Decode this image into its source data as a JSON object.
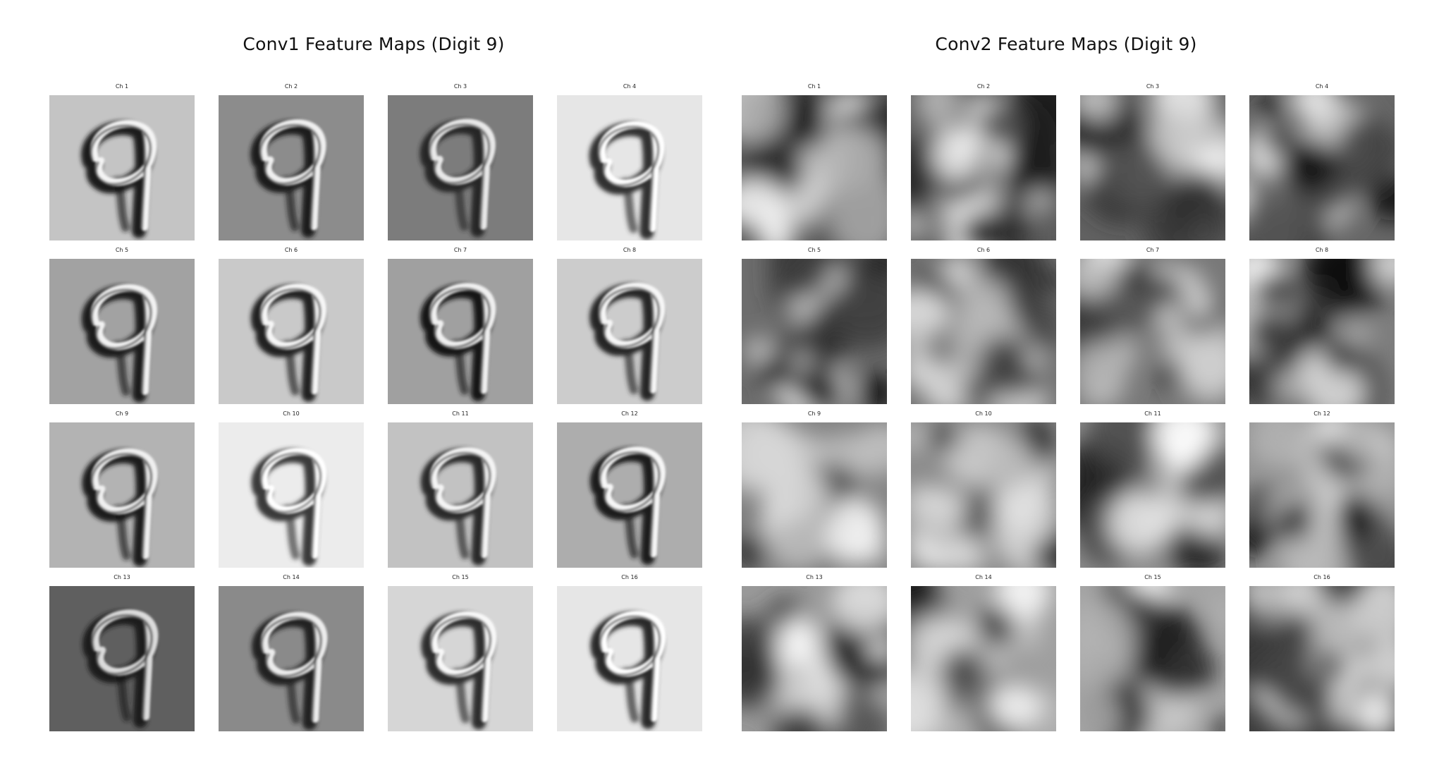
{
  "panels": [
    {
      "id": "conv1",
      "title": "Conv1 Feature Maps (Digit 9)",
      "channels": [
        {
          "label": "Ch 1",
          "bg": "#c4c4c4",
          "stroke_dark": "#1a1a1a",
          "stroke_light": "#f4f4f4"
        },
        {
          "label": "Ch 2",
          "bg": "#8c8c8c",
          "stroke_dark": "#1e1e1e",
          "stroke_light": "#f0f0f0"
        },
        {
          "label": "Ch 3",
          "bg": "#7c7c7c",
          "stroke_dark": "#262626",
          "stroke_light": "#e8e8e8"
        },
        {
          "label": "Ch 4",
          "bg": "#e6e6e6",
          "stroke_dark": "#333333",
          "stroke_light": "#ffffff"
        },
        {
          "label": "Ch 5",
          "bg": "#a2a2a2",
          "stroke_dark": "#1c1c1c",
          "stroke_light": "#f2f2f2"
        },
        {
          "label": "Ch 6",
          "bg": "#c9c9c9",
          "stroke_dark": "#222222",
          "stroke_light": "#f6f6f6"
        },
        {
          "label": "Ch 7",
          "bg": "#a0a0a0",
          "stroke_dark": "#181818",
          "stroke_light": "#f0f0f0"
        },
        {
          "label": "Ch 8",
          "bg": "#cccccc",
          "stroke_dark": "#262626",
          "stroke_light": "#f6f6f6"
        },
        {
          "label": "Ch 9",
          "bg": "#b3b3b3",
          "stroke_dark": "#1a1a1a",
          "stroke_light": "#f0f0f0"
        },
        {
          "label": "Ch 10",
          "bg": "#ececec",
          "stroke_dark": "#3a3a3a",
          "stroke_light": "#ffffff"
        },
        {
          "label": "Ch 11",
          "bg": "#c2c2c2",
          "stroke_dark": "#2a2a2a",
          "stroke_light": "#f4f4f4"
        },
        {
          "label": "Ch 12",
          "bg": "#adadad",
          "stroke_dark": "#1f1f1f",
          "stroke_light": "#f6f6f6"
        },
        {
          "label": "Ch 13",
          "bg": "#5f5f5f",
          "stroke_dark": "#1a1a1a",
          "stroke_light": "#dcdcdc"
        },
        {
          "label": "Ch 14",
          "bg": "#8a8a8a",
          "stroke_dark": "#222222",
          "stroke_light": "#ececec"
        },
        {
          "label": "Ch 15",
          "bg": "#d6d6d6",
          "stroke_dark": "#2e2e2e",
          "stroke_light": "#f8f8f8"
        },
        {
          "label": "Ch 16",
          "bg": "#e6e6e6",
          "stroke_dark": "#2a2a2a",
          "stroke_light": "#ffffff"
        }
      ]
    },
    {
      "id": "conv2",
      "title": "Conv2 Feature Maps (Digit 9)",
      "channels": [
        {
          "label": "Ch 1"
        },
        {
          "label": "Ch 2"
        },
        {
          "label": "Ch 3"
        },
        {
          "label": "Ch 4"
        },
        {
          "label": "Ch 5"
        },
        {
          "label": "Ch 6"
        },
        {
          "label": "Ch 7"
        },
        {
          "label": "Ch 8"
        },
        {
          "label": "Ch 9"
        },
        {
          "label": "Ch 10"
        },
        {
          "label": "Ch 11"
        },
        {
          "label": "Ch 12"
        },
        {
          "label": "Ch 13"
        },
        {
          "label": "Ch 14"
        },
        {
          "label": "Ch 15"
        },
        {
          "label": "Ch 16"
        }
      ]
    }
  ]
}
